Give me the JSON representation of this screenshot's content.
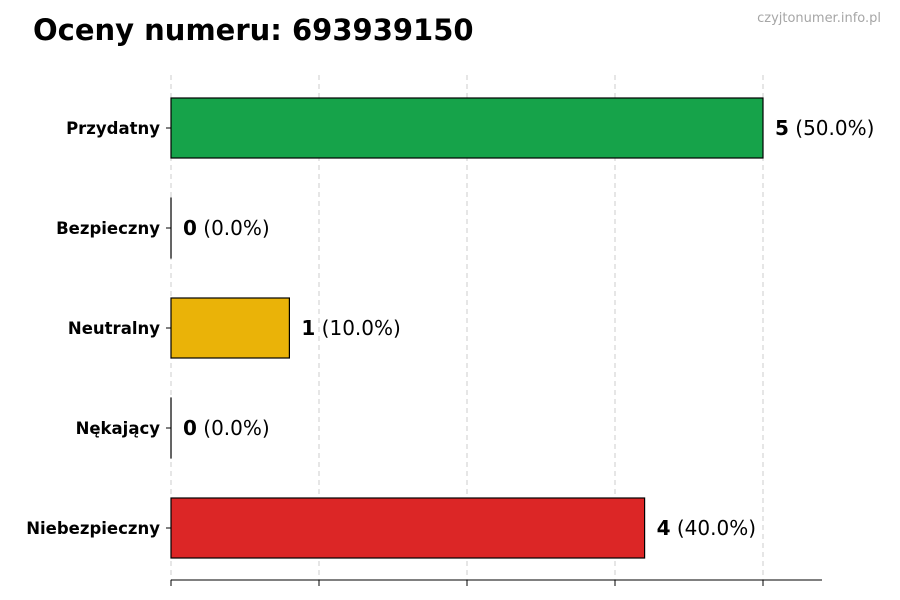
{
  "title": "Oceny numeru: 693939150",
  "watermark": "czyjtonumer.info.pl",
  "chart_data": {
    "type": "bar",
    "orientation": "horizontal",
    "categories": [
      "Przydatny",
      "Bezpieczny",
      "Neutralny",
      "Nękający",
      "Niebezpieczny"
    ],
    "values": [
      5,
      0,
      1,
      0,
      4
    ],
    "value_labels": [
      "(50.0%)",
      "(0.0%)",
      "(10.0%)",
      "(0.0%)",
      "(40.0%)"
    ],
    "colors": [
      "#16a34a",
      "#16a34a",
      "#eab308",
      "#dc2626",
      "#dc2626"
    ],
    "xlim": [
      0,
      5.5
    ],
    "xticks": [
      0,
      1.25,
      2.5,
      3.75,
      5
    ],
    "grid": true,
    "xlabel": "",
    "ylabel": ""
  }
}
